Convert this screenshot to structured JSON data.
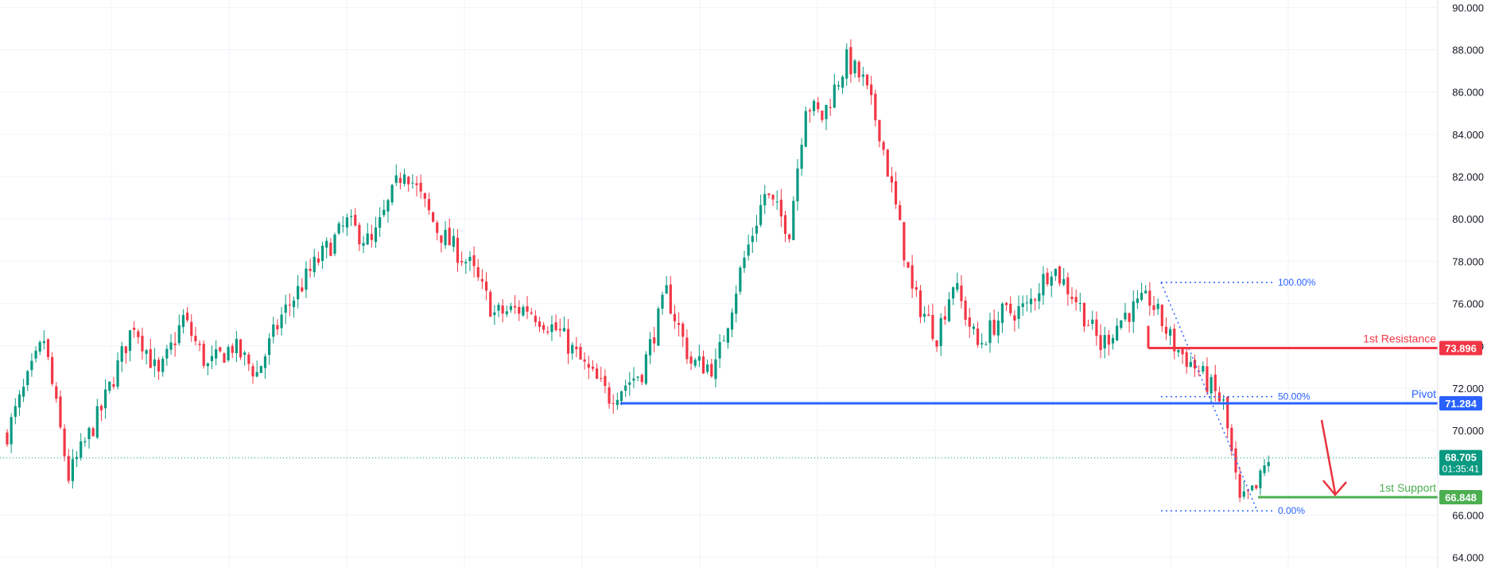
{
  "chart_data": {
    "type": "candlestick",
    "y_ticks": [
      "90.000",
      "88.000",
      "86.000",
      "84.000",
      "82.000",
      "80.000",
      "78.000",
      "76.000",
      "74.000",
      "72.000",
      "70.000",
      "66.000",
      "64.000"
    ],
    "y_tick_values": [
      90,
      88,
      86,
      84,
      82,
      80,
      78,
      76,
      74,
      72,
      70,
      66,
      64
    ],
    "ylim": [
      63.8,
      90.2
    ],
    "grid": true,
    "colors": {
      "up": "#089981",
      "down": "#f23645",
      "resistance": "#f23645",
      "pivot": "#2962ff",
      "support": "#4caf50",
      "fib": "#2962ff",
      "arrow": "#e8343e",
      "grid": "#f0f3fa",
      "axis_text": "#131722"
    },
    "levels": [
      {
        "name": "resistance",
        "label": "1st Resistance",
        "value": 73.896,
        "badge": "73.896",
        "color": "#f23645"
      },
      {
        "name": "pivot",
        "label": "Pivot",
        "value": 71.284,
        "badge": "71.284",
        "color": "#2962ff"
      },
      {
        "name": "support",
        "label": "1st Support",
        "value": 66.848,
        "badge": "66.848",
        "color": "#4caf50"
      }
    ],
    "current_price": {
      "value": 68.705,
      "label": "68.705",
      "countdown": "01:35:41",
      "color": "#089981"
    },
    "fibonacci": [
      {
        "label": "100.00%",
        "value": 77.0
      },
      {
        "label": "50.00%",
        "value": 71.6
      },
      {
        "label": "0.00%",
        "value": 66.2
      }
    ],
    "anchors": [
      {
        "index": 0,
        "close": 69.4
      },
      {
        "index": 10,
        "close": 74.3
      },
      {
        "index": 16,
        "close": 67.8
      },
      {
        "index": 24,
        "close": 71.0
      },
      {
        "index": 32,
        "close": 75.1
      },
      {
        "index": 38,
        "close": 72.5
      },
      {
        "index": 44,
        "close": 75.3
      },
      {
        "index": 50,
        "close": 73.0
      },
      {
        "index": 56,
        "close": 74.0
      },
      {
        "index": 62,
        "close": 72.7
      },
      {
        "index": 68,
        "close": 75.4
      },
      {
        "index": 76,
        "close": 77.8
      },
      {
        "index": 84,
        "close": 79.8
      },
      {
        "index": 90,
        "close": 78.8
      },
      {
        "index": 98,
        "close": 82.5
      },
      {
        "index": 106,
        "close": 79.5
      },
      {
        "index": 114,
        "close": 77.8
      },
      {
        "index": 120,
        "close": 75.5
      },
      {
        "index": 128,
        "close": 75.8
      },
      {
        "index": 136,
        "close": 74.6
      },
      {
        "index": 142,
        "close": 73.0
      },
      {
        "index": 148,
        "close": 71.6
      },
      {
        "index": 156,
        "close": 72.8
      },
      {
        "index": 162,
        "close": 76.5
      },
      {
        "index": 168,
        "close": 73.2
      },
      {
        "index": 174,
        "close": 73.0
      },
      {
        "index": 180,
        "close": 77.5
      },
      {
        "index": 186,
        "close": 81.2
      },
      {
        "index": 192,
        "close": 79.5
      },
      {
        "index": 196,
        "close": 85.5
      },
      {
        "index": 200,
        "close": 84.8
      },
      {
        "index": 206,
        "close": 87.5
      },
      {
        "index": 210,
        "close": 86.5
      },
      {
        "index": 214,
        "close": 84.2
      },
      {
        "index": 218,
        "close": 80.5
      },
      {
        "index": 222,
        "close": 76.5
      },
      {
        "index": 228,
        "close": 74.5
      },
      {
        "index": 232,
        "close": 77.0
      },
      {
        "index": 238,
        "close": 74.0
      },
      {
        "index": 244,
        "close": 75.5
      },
      {
        "index": 250,
        "close": 75.8
      },
      {
        "index": 256,
        "close": 77.8
      },
      {
        "index": 262,
        "close": 76.2
      },
      {
        "index": 268,
        "close": 74.0
      },
      {
        "index": 274,
        "close": 75.5
      },
      {
        "index": 280,
        "close": 76.2
      },
      {
        "index": 286,
        "close": 74.0
      },
      {
        "index": 292,
        "close": 72.8
      },
      {
        "index": 298,
        "close": 71.2
      },
      {
        "index": 302,
        "close": 66.5
      },
      {
        "index": 306,
        "close": 67.2
      },
      {
        "index": 309,
        "close": 68.7
      }
    ]
  }
}
